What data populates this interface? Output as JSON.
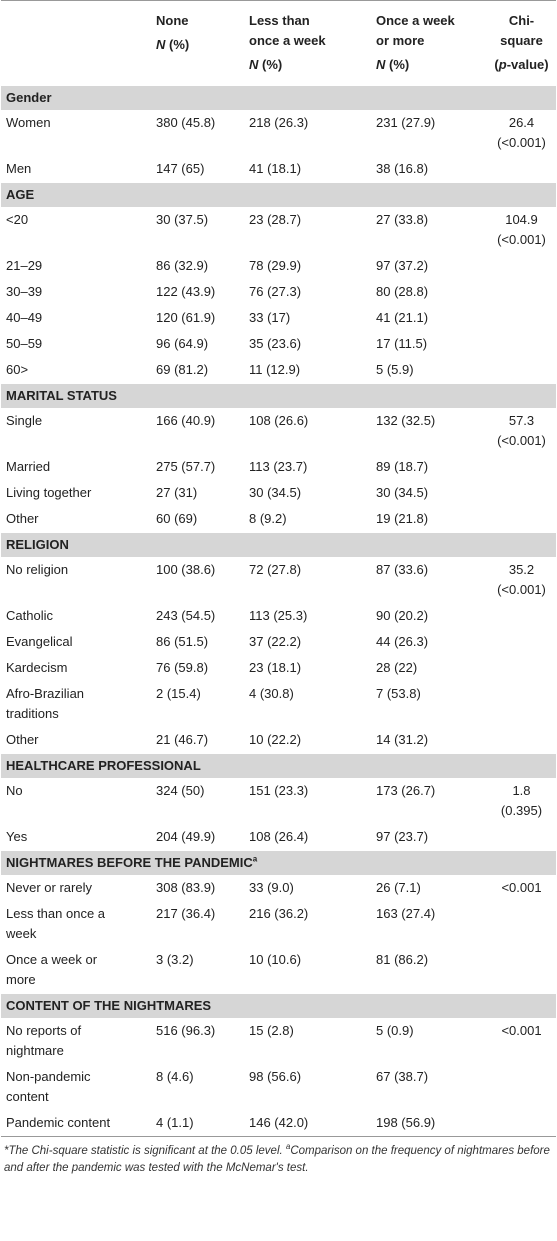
{
  "table": {
    "columns": [
      {
        "lines": [
          "None"
        ],
        "unit": [
          "N",
          "(%)"
        ]
      },
      {
        "lines": [
          "Less than",
          "once a week"
        ],
        "unit": [
          "N",
          "(%)"
        ]
      },
      {
        "lines": [
          "Once a week",
          "or more"
        ],
        "unit": [
          "N",
          "(%)"
        ]
      },
      {
        "lines": [
          "Chi-square"
        ],
        "unit": [
          "(",
          "p",
          "-value)"
        ]
      }
    ],
    "sections": [
      {
        "title": "Gender",
        "rows": [
          {
            "label": "Women",
            "values": [
              "380 (45.8)",
              "218 (26.3)",
              "231 (27.9)"
            ],
            "chi": "26.4 (<0.001)"
          },
          {
            "label": "Men",
            "values": [
              "147 (65)",
              "41 (18.1)",
              "38 (16.8)"
            ]
          }
        ]
      },
      {
        "title": "AGE",
        "rows": [
          {
            "label": "<20",
            "values": [
              "30 (37.5)",
              "23 (28.7)",
              "27 (33.8)"
            ],
            "chi": "104.9 (<0.001)"
          },
          {
            "label": "21–29",
            "values": [
              "86 (32.9)",
              "78 (29.9)",
              "97 (37.2)"
            ]
          },
          {
            "label": "30–39",
            "values": [
              "122 (43.9)",
              "76 (27.3)",
              "80 (28.8)"
            ]
          },
          {
            "label": "40–49",
            "values": [
              "120 (61.9)",
              "33 (17)",
              "41 (21.1)"
            ]
          },
          {
            "label": "50–59",
            "values": [
              "96 (64.9)",
              "35 (23.6)",
              "17 (11.5)"
            ]
          },
          {
            "label": "60>",
            "values": [
              "69 (81.2)",
              "11 (12.9)",
              "5 (5.9)"
            ]
          }
        ]
      },
      {
        "title": "MARITAL STATUS",
        "rows": [
          {
            "label": "Single",
            "values": [
              "166 (40.9)",
              "108 (26.6)",
              "132 (32.5)"
            ],
            "chi": "57.3 (<0.001)"
          },
          {
            "label": "Married",
            "values": [
              "275 (57.7)",
              "113 (23.7)",
              "89 (18.7)"
            ]
          },
          {
            "label": "Living together",
            "values": [
              "27 (31)",
              "30 (34.5)",
              "30 (34.5)"
            ]
          },
          {
            "label": "Other",
            "values": [
              "60 (69)",
              "8 (9.2)",
              "19 (21.8)"
            ]
          }
        ]
      },
      {
        "title": "RELIGION",
        "rows": [
          {
            "label": "No religion",
            "values": [
              "100 (38.6)",
              "72 (27.8)",
              "87 (33.6)"
            ],
            "chi": "35.2 (<0.001)"
          },
          {
            "label": "Catholic",
            "values": [
              "243 (54.5)",
              "113 (25.3)",
              "90 (20.2)"
            ]
          },
          {
            "label": "Evangelical",
            "values": [
              "86 (51.5)",
              "37 (22.2)",
              "44 (26.3)"
            ]
          },
          {
            "label": "Kardecism",
            "values": [
              "76 (59.8)",
              "23 (18.1)",
              "28 (22)"
            ]
          },
          {
            "label": "Afro-Brazilian traditions",
            "values": [
              "2 (15.4)",
              "4 (30.8)",
              "7 (53.8)"
            ]
          },
          {
            "label": "Other",
            "values": [
              "21 (46.7)",
              "10 (22.2)",
              "14 (31.2)"
            ]
          }
        ]
      },
      {
        "title": "HEALTHCARE PROFESSIONAL",
        "rows": [
          {
            "label": "No",
            "values": [
              "324 (50)",
              "151 (23.3)",
              "173 (26.7)"
            ],
            "chi": "1.8 (0.395)"
          },
          {
            "label": "Yes",
            "values": [
              "204 (49.9)",
              "108 (26.4)",
              "97 (23.7)"
            ]
          }
        ]
      },
      {
        "title": "NIGHTMARES BEFORE THE PANDEMIC",
        "note": "a",
        "rows": [
          {
            "label": "Never or rarely",
            "values": [
              "308 (83.9)",
              "33 (9.0)",
              "26 (7.1)"
            ],
            "chi": "<0.001"
          },
          {
            "label": "Less than once a week",
            "values": [
              "217 (36.4)",
              "216 (36.2)",
              "163 (27.4)"
            ]
          },
          {
            "label": "Once a week or more",
            "values": [
              "3 (3.2)",
              "10 (10.6)",
              "81 (86.2)"
            ]
          }
        ]
      },
      {
        "title": "CONTENT OF THE NIGHTMARES",
        "rows": [
          {
            "label": "No reports of nightmare",
            "values": [
              "516 (96.3)",
              "15 (2.8)",
              "5 (0.9)"
            ],
            "chi": "<0.001"
          },
          {
            "label": "Non-pandemic content",
            "values": [
              "8 (4.6)",
              "98 (56.6)",
              "67 (38.7)"
            ]
          },
          {
            "label": "Pandemic content",
            "values": [
              "4 (1.1)",
              "146 (42.0)",
              "198 (56.9)"
            ]
          }
        ]
      }
    ]
  },
  "footnote": [
    "*The Chi-square statistic is significant at the 0.05 level.",
    "a",
    "Comparison on the frequency of nightmares before and after the pandemic was tested with the McNemar's test."
  ]
}
